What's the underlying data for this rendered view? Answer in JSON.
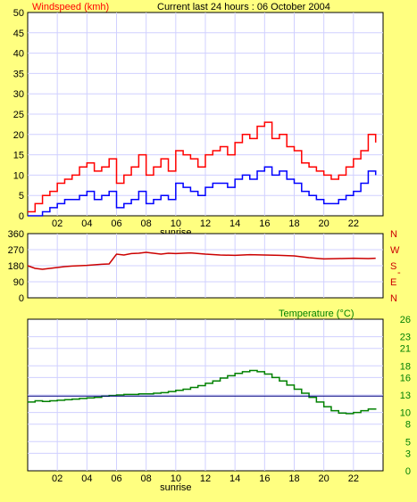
{
  "colors": {
    "background": "#ffff80",
    "plot_bg": "#ffffff",
    "grid": "#d0d0ff",
    "windspeed": "#ff0000",
    "windspeed_avg": "#0000ff",
    "direction": "#cc0000",
    "temperature": "#008000",
    "reference": "#000080",
    "axis_text": "#000000"
  },
  "header": {
    "left_title": "Windspeed (kmh)",
    "center_title": "Current last 24 hours : 06 October 2004"
  },
  "x_axis": {
    "ticks": [
      "02",
      "04",
      "06",
      "08",
      "10",
      "12",
      "14",
      "16",
      "18",
      "20",
      "22"
    ],
    "tick_values": [
      2,
      4,
      6,
      8,
      10,
      12,
      14,
      16,
      18,
      20,
      22
    ],
    "range": [
      0,
      24
    ],
    "marker_label": "sunrise",
    "marker_value": 10
  },
  "chart_data": [
    {
      "id": "windspeed",
      "type": "line",
      "title": "Windspeed (kmh)",
      "ylim": [
        0,
        50
      ],
      "yticks": [
        "0",
        "5",
        "10",
        "15",
        "20",
        "25",
        "30",
        "35",
        "40",
        "45",
        "50"
      ],
      "series": [
        {
          "name": "",
          "role": "gust",
          "x": [
            0,
            0.5,
            1,
            1.5,
            2,
            2.5,
            3,
            3.5,
            4,
            4.5,
            5,
            5.5,
            6,
            6.5,
            7,
            7.5,
            8,
            8.5,
            9,
            9.5,
            10,
            10.5,
            11,
            11.5,
            12,
            12.5,
            13,
            13.5,
            14,
            14.5,
            15,
            15.5,
            16,
            16.5,
            17,
            17.5,
            18,
            18.5,
            19,
            19.5,
            20,
            20.5,
            21,
            21.5,
            22,
            22.5,
            23,
            23.5
          ],
          "y": [
            1,
            3,
            5,
            6,
            8,
            9,
            10,
            12,
            13,
            11,
            12,
            14,
            8,
            10,
            12,
            15,
            10,
            12,
            14,
            11,
            16,
            15,
            14,
            12,
            15,
            16,
            17,
            15,
            18,
            20,
            19,
            22,
            23,
            19,
            20,
            17,
            16,
            13,
            12,
            11,
            10,
            9,
            10,
            12,
            14,
            16,
            20,
            18
          ]
        },
        {
          "name": "",
          "role": "average",
          "x": [
            0,
            0.5,
            1,
            1.5,
            2,
            2.5,
            3,
            3.5,
            4,
            4.5,
            5,
            5.5,
            6,
            6.5,
            7,
            7.5,
            8,
            8.5,
            9,
            9.5,
            10,
            10.5,
            11,
            11.5,
            12,
            12.5,
            13,
            13.5,
            14,
            14.5,
            15,
            15.5,
            16,
            16.5,
            17,
            17.5,
            18,
            18.5,
            19,
            19.5,
            20,
            20.5,
            21,
            21.5,
            22,
            22.5,
            23,
            23.5
          ],
          "y": [
            0,
            0,
            1,
            2,
            3,
            4,
            4,
            5,
            6,
            4,
            5,
            6,
            2,
            3,
            4,
            6,
            3,
            4,
            5,
            4,
            8,
            7,
            6,
            5,
            7,
            8,
            8,
            7,
            9,
            10,
            9,
            11,
            12,
            10,
            11,
            9,
            8,
            6,
            5,
            4,
            3,
            3,
            4,
            5,
            6,
            8,
            11,
            10
          ]
        }
      ]
    },
    {
      "id": "direction",
      "type": "line",
      "yticks": [
        "0",
        "90",
        "180",
        "270",
        "360"
      ],
      "ylim": [
        0,
        360
      ],
      "right_labels": [
        "N",
        "W",
        "S",
        "E",
        "N"
      ],
      "right_extra": "-",
      "series": [
        {
          "name": "",
          "x": [
            0,
            0.5,
            1,
            1.5,
            2,
            2.5,
            3,
            3.5,
            4,
            4.5,
            5,
            5.5,
            6,
            6.5,
            7,
            7.5,
            8,
            8.5,
            9,
            9.5,
            10,
            11,
            12,
            13,
            14,
            15,
            16,
            17,
            18,
            19,
            20,
            21,
            22,
            23,
            23.5
          ],
          "y": [
            180,
            165,
            160,
            165,
            170,
            175,
            178,
            180,
            182,
            185,
            188,
            190,
            245,
            240,
            248,
            250,
            255,
            250,
            245,
            250,
            248,
            252,
            245,
            240,
            238,
            242,
            240,
            238,
            235,
            225,
            218,
            220,
            222,
            220,
            222
          ]
        }
      ]
    },
    {
      "id": "temperature",
      "type": "line",
      "title": "Temperature (°C)",
      "ylim": [
        0,
        26
      ],
      "yticks": [
        "0",
        "3",
        "5",
        "8",
        "10",
        "13",
        "16",
        "18",
        "21",
        "23",
        "26"
      ],
      "series": [
        {
          "name": "",
          "role": "temperature",
          "x": [
            0,
            0.5,
            1,
            1.5,
            2,
            2.5,
            3,
            3.5,
            4,
            4.5,
            5,
            5.5,
            6,
            6.5,
            7,
            7.5,
            8,
            8.5,
            9,
            9.5,
            10,
            10.5,
            11,
            11.5,
            12,
            12.5,
            13,
            13.5,
            14,
            14.5,
            15,
            15.5,
            16,
            16.5,
            17,
            17.5,
            18,
            18.5,
            19,
            19.5,
            20,
            20.5,
            21,
            21.5,
            22,
            22.5,
            23,
            23.5
          ],
          "y": [
            11.8,
            12.0,
            11.9,
            12.0,
            12.1,
            12.2,
            12.3,
            12.4,
            12.5,
            12.6,
            12.8,
            12.9,
            13.0,
            13.1,
            13.1,
            13.2,
            13.2,
            13.3,
            13.4,
            13.6,
            13.8,
            14.0,
            14.3,
            14.6,
            15.0,
            15.4,
            15.9,
            16.3,
            16.7,
            17.0,
            17.2,
            17.0,
            16.6,
            16.0,
            15.4,
            14.7,
            14.0,
            13.3,
            12.6,
            11.8,
            11.0,
            10.3,
            9.9,
            9.8,
            10.0,
            10.3,
            10.6,
            10.7
          ]
        },
        {
          "name": "",
          "role": "reference",
          "x": [
            0,
            24
          ],
          "y": [
            12.8,
            12.8
          ]
        }
      ]
    }
  ]
}
